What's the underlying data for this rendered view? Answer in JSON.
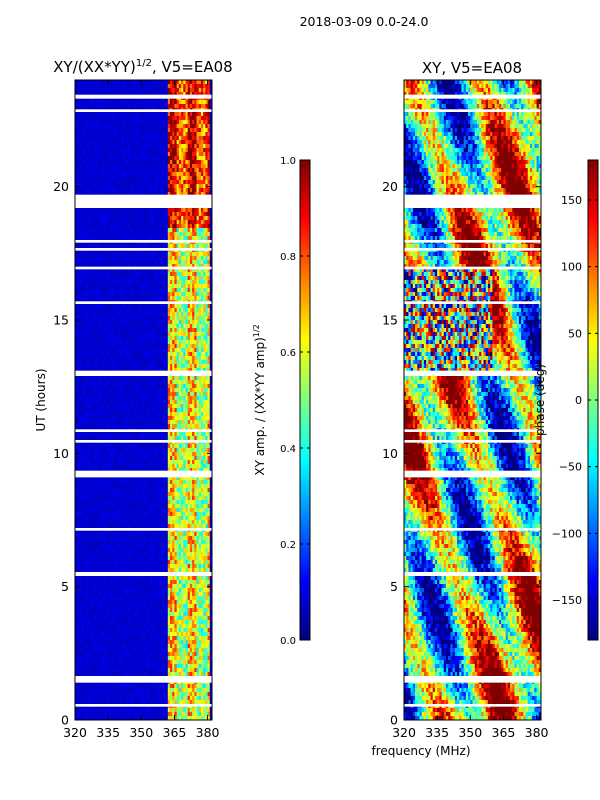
{
  "suptitle": "2018-03-09 0.0-24.0",
  "xlabel": "frequency (MHz)",
  "colors": {
    "jet": [
      "#00007f",
      "#0000ff",
      "#007fff",
      "#00ffff",
      "#7fff7f",
      "#ffff00",
      "#ff7f00",
      "#ff0000",
      "#7f0000"
    ],
    "background": "#ffffff"
  },
  "chart_data": [
    {
      "type": "heatmap",
      "title_text": "XY/(XX*YY)",
      "title_exp": "1/2",
      "title_suffix": ", V5=EA08",
      "xlabel": "",
      "ylabel": "UT (hours)",
      "xlim": [
        320,
        382
      ],
      "ylim": [
        0,
        24
      ],
      "xticks": [
        320,
        335,
        350,
        365,
        380
      ],
      "yticks": [
        0,
        5,
        10,
        15,
        20
      ],
      "colorbar": {
        "label_text": "XY amp. / (XX*YY amp)",
        "label_exp": "1/2",
        "vmin": 0.0,
        "vmax": 1.0,
        "ticks": [
          0.0,
          0.2,
          0.4,
          0.6,
          0.8,
          1.0
        ],
        "tick_labels": [
          "0.0",
          "0.2",
          "0.4",
          "0.6",
          "0.8",
          "1.0"
        ]
      },
      "blank_hours": [
        [
          19.2,
          19.7
        ],
        [
          17.9,
          18.0
        ],
        [
          17.6,
          17.7
        ],
        [
          16.9,
          17.0
        ],
        [
          15.6,
          15.7
        ],
        [
          12.9,
          13.1
        ],
        [
          10.8,
          10.9
        ],
        [
          10.4,
          10.5
        ],
        [
          9.1,
          9.35
        ],
        [
          7.1,
          7.2
        ],
        [
          5.4,
          5.55
        ],
        [
          1.4,
          1.65
        ],
        [
          0.5,
          0.6
        ],
        [
          23.3,
          23.45
        ],
        [
          22.8,
          22.9
        ]
      ],
      "active_band_mhz": [
        362,
        381
      ]
    },
    {
      "type": "heatmap",
      "title_text": "XY, V5=EA08",
      "xlabel": "frequency (MHz)",
      "ylabel": "",
      "xlim": [
        320,
        382
      ],
      "ylim": [
        0,
        24
      ],
      "xticks": [
        320,
        335,
        350,
        365,
        380
      ],
      "yticks": [
        0,
        5,
        10,
        15,
        20
      ],
      "colorbar": {
        "label_text": "phase (deg)",
        "vmin": -180,
        "vmax": 180,
        "ticks": [
          150,
          100,
          50,
          0,
          -50,
          -100,
          -150
        ],
        "tick_labels": [
          "150",
          "100",
          "50",
          "0",
          "−50",
          "−100",
          "−150"
        ]
      },
      "blank_hours": [
        [
          19.2,
          19.7
        ],
        [
          17.9,
          18.0
        ],
        [
          17.6,
          17.7
        ],
        [
          16.9,
          17.0
        ],
        [
          15.6,
          15.7
        ],
        [
          12.9,
          13.1
        ],
        [
          10.8,
          10.9
        ],
        [
          10.4,
          10.5
        ],
        [
          9.1,
          9.35
        ],
        [
          7.1,
          7.2
        ],
        [
          5.4,
          5.55
        ],
        [
          1.4,
          1.65
        ],
        [
          0.5,
          0.6
        ],
        [
          23.3,
          23.45
        ],
        [
          22.8,
          22.9
        ]
      ]
    }
  ]
}
